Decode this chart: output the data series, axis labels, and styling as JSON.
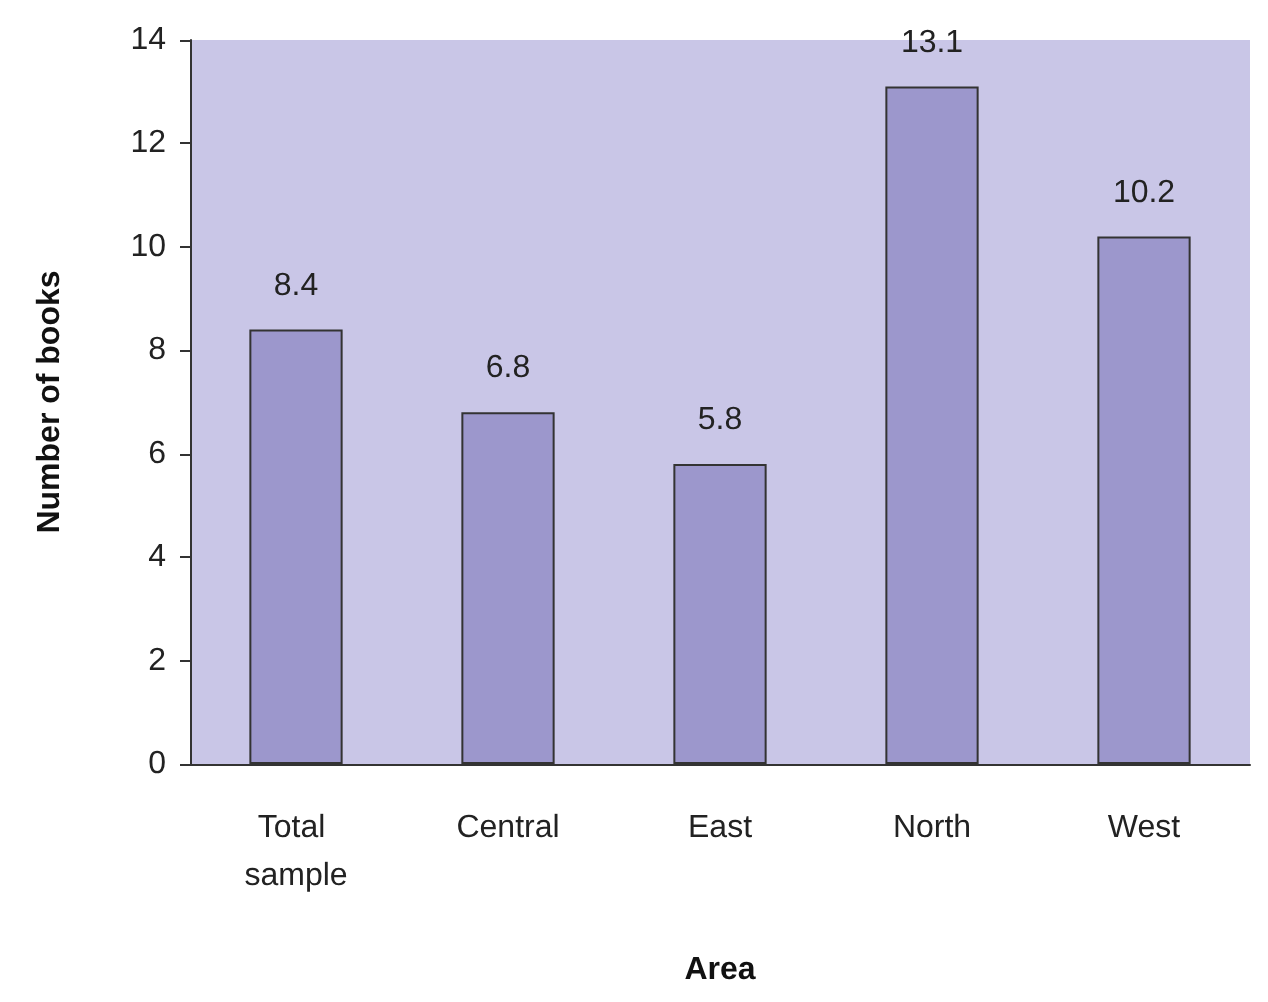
{
  "chart_data": {
    "type": "bar",
    "xlabel": "Area",
    "ylabel": "Number of books",
    "categories": [
      "Total sample",
      "Central",
      "East",
      "North",
      "West"
    ],
    "values": [
      8.4,
      6.8,
      5.8,
      13.1,
      10.2
    ],
    "color": "#9c97cc",
    "ylim": [
      0,
      14
    ],
    "yticks": [
      0,
      2,
      4,
      6,
      8,
      10,
      12,
      14
    ],
    "data_labels": true
  }
}
